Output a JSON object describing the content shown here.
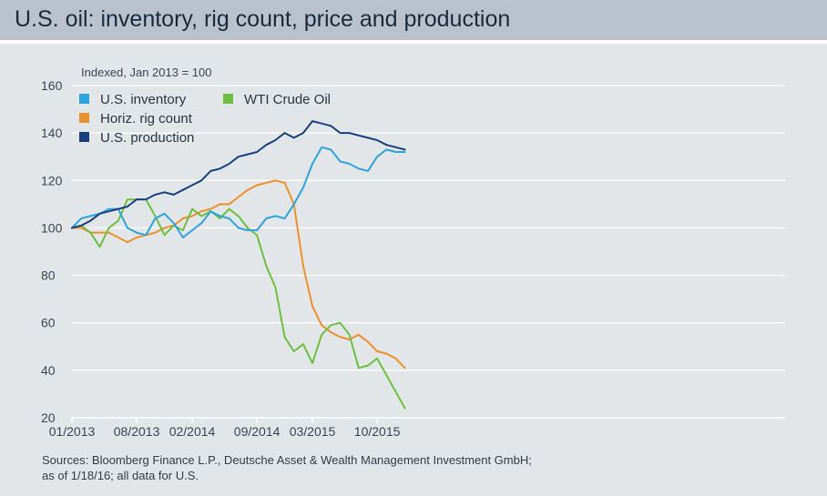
{
  "title": "U.S. oil: inventory, rig count, price and production",
  "source_lines": [
    "Sources: Bloomberg Finance L.P., Deutsche Asset & Wealth Management Investment GmbH;",
    "as of 1/18/16; all data for U.S."
  ],
  "colors": {
    "panel_bg": "#e3e6e9",
    "title_bg": "#b9c2cc",
    "inventory": "#2ea3dc",
    "rig_count": "#e8912e",
    "production": "#1a3f7f",
    "wti": "#6fbd44"
  },
  "chart_data": {
    "type": "line",
    "ylabel": "Indexed, Jan 2013 = 100",
    "ylim": [
      20,
      160
    ],
    "yticks": [
      160,
      140,
      120,
      100,
      80,
      60,
      40,
      20
    ],
    "x_ticks": [
      "01/2013",
      "08/2013",
      "02/2014",
      "09/2014",
      "03/2015",
      "10/2015"
    ],
    "x_tick_index": [
      0,
      7,
      13,
      20,
      26,
      33
    ],
    "grid": true,
    "legend_position": "top-left",
    "x": [
      "01/2013",
      "02/2013",
      "03/2013",
      "04/2013",
      "05/2013",
      "06/2013",
      "07/2013",
      "08/2013",
      "09/2013",
      "10/2013",
      "11/2013",
      "12/2013",
      "01/2014",
      "02/2014",
      "03/2014",
      "04/2014",
      "05/2014",
      "06/2014",
      "07/2014",
      "08/2014",
      "09/2014",
      "10/2014",
      "11/2014",
      "12/2014",
      "01/2015",
      "02/2015",
      "03/2015",
      "04/2015",
      "05/2015",
      "06/2015",
      "07/2015",
      "08/2015",
      "09/2015",
      "10/2015",
      "11/2015",
      "12/2015",
      "01/2016"
    ],
    "series": [
      {
        "name": "U.S. inventory",
        "color_key": "inventory",
        "values": [
          100,
          104,
          105,
          106,
          108,
          108,
          100,
          98,
          97,
          104,
          106,
          102,
          96,
          99,
          102,
          107,
          105,
          104,
          100,
          99,
          99,
          104,
          105,
          104,
          110,
          117,
          127,
          134,
          133,
          128,
          127,
          125,
          124,
          130,
          133,
          132,
          132
        ]
      },
      {
        "name": "Horiz. rig count",
        "color_key": "rig_count",
        "values": [
          100,
          100,
          98,
          98,
          98,
          96,
          94,
          96,
          97,
          98,
          100,
          101,
          104,
          105,
          107,
          108,
          110,
          110,
          113,
          116,
          118,
          119,
          120,
          119,
          110,
          84,
          67,
          59,
          56,
          54,
          53,
          55,
          52,
          48,
          47,
          45,
          41
        ]
      },
      {
        "name": "U.S. production",
        "color_key": "production",
        "values": [
          100,
          101,
          103,
          106,
          107,
          108,
          109,
          112,
          112,
          114,
          115,
          114,
          116,
          118,
          120,
          124,
          125,
          127,
          130,
          131,
          132,
          135,
          137,
          140,
          138,
          140,
          145,
          144,
          143,
          140,
          140,
          139,
          138,
          137,
          135,
          134,
          133
        ]
      },
      {
        "name": "WTI Crude Oil",
        "color_key": "wti",
        "values": [
          100,
          101,
          98,
          92,
          100,
          103,
          112,
          112,
          112,
          105,
          97,
          101,
          99,
          108,
          105,
          107,
          104,
          108,
          105,
          100,
          97,
          84,
          75,
          54,
          48,
          51,
          43,
          55,
          59,
          60,
          55,
          41,
          42,
          45,
          38,
          31,
          24
        ]
      }
    ]
  }
}
